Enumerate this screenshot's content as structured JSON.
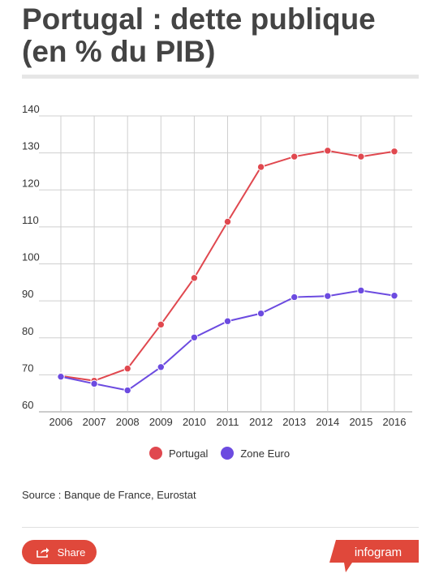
{
  "header": {
    "title_line1": "Portugal : dette publique",
    "title_line2": "(en % du PIB)"
  },
  "footer": {
    "source": "Source : Banque de France, Eurostat",
    "share_label": "Share",
    "brand": "infogram"
  },
  "colors": {
    "portugal": "#e0484f",
    "zone_euro": "#6c4be0",
    "brand": "#e0483b"
  },
  "chart_data": {
    "type": "line",
    "title": "Portugal : dette publique (en % du PIB)",
    "x": [
      "2006",
      "2007",
      "2008",
      "2009",
      "2010",
      "2011",
      "2012",
      "2013",
      "2014",
      "2015",
      "2016"
    ],
    "series": [
      {
        "name": "Portugal",
        "values": [
          69.7,
          68.4,
          71.7,
          83.6,
          96.2,
          111.4,
          126.2,
          129.0,
          130.6,
          129.0,
          130.4
        ]
      },
      {
        "name": "Zone Euro",
        "values": [
          69.5,
          67.6,
          65.8,
          72.1,
          80.1,
          84.5,
          86.6,
          91.0,
          91.3,
          92.8,
          91.4
        ]
      }
    ],
    "ylim": [
      60,
      140
    ],
    "yticks": [
      "60",
      "70",
      "80",
      "90",
      "100",
      "110",
      "120",
      "130",
      "140"
    ],
    "grid": true,
    "legend": "bottom-center"
  }
}
